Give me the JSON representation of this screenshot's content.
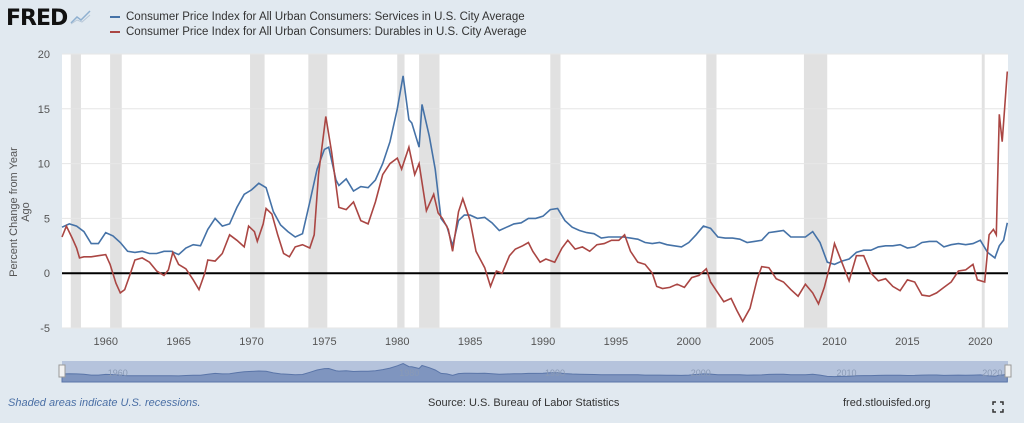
{
  "logo_text": "FRED",
  "chart_data": {
    "type": "line",
    "title": "",
    "ylabel": "Percent Change from Year Ago",
    "xlabel": "",
    "xlim": [
      1957.0,
      2021.9
    ],
    "ylim": [
      -5,
      20
    ],
    "yticks": [
      -5,
      0,
      5,
      10,
      15,
      20
    ],
    "xticks": [
      1960,
      1965,
      1970,
      1975,
      1980,
      1985,
      1990,
      1995,
      2000,
      2005,
      2010,
      2015,
      2020
    ],
    "grid": true,
    "legend_position": "top",
    "recessions": [
      [
        1957.6,
        1958.3
      ],
      [
        1960.3,
        1961.1
      ],
      [
        1969.9,
        1970.9
      ],
      [
        1973.9,
        1975.2
      ],
      [
        1980.0,
        1980.5
      ],
      [
        1981.5,
        1982.9
      ],
      [
        1990.5,
        1991.2
      ],
      [
        2001.2,
        2001.9
      ],
      [
        2007.9,
        2009.5
      ],
      [
        2020.1,
        2020.3
      ]
    ],
    "series": [
      {
        "name": "Consumer Price Index for All Urban Consumers: Services in U.S. City Average",
        "color": "#4572a7",
        "points": [
          [
            1957.0,
            4.2
          ],
          [
            1957.5,
            4.5
          ],
          [
            1958,
            4.3
          ],
          [
            1958.5,
            3.8
          ],
          [
            1959,
            2.7
          ],
          [
            1959.5,
            2.7
          ],
          [
            1960,
            3.7
          ],
          [
            1960.5,
            3.4
          ],
          [
            1961,
            2.8
          ],
          [
            1961.5,
            2.0
          ],
          [
            1962,
            1.9
          ],
          [
            1962.5,
            2.0
          ],
          [
            1963,
            1.8
          ],
          [
            1963.5,
            1.8
          ],
          [
            1964,
            2.0
          ],
          [
            1964.5,
            2.0
          ],
          [
            1965,
            1.7
          ],
          [
            1965.5,
            2.3
          ],
          [
            1966,
            2.6
          ],
          [
            1966.5,
            2.5
          ],
          [
            1967,
            4.0
          ],
          [
            1967.5,
            5.0
          ],
          [
            1968,
            4.3
          ],
          [
            1968.5,
            4.5
          ],
          [
            1969,
            6.0
          ],
          [
            1969.5,
            7.2
          ],
          [
            1970,
            7.6
          ],
          [
            1970.5,
            8.2
          ],
          [
            1971,
            7.8
          ],
          [
            1971.5,
            5.6
          ],
          [
            1972,
            4.4
          ],
          [
            1972.5,
            3.8
          ],
          [
            1973,
            3.3
          ],
          [
            1973.5,
            3.6
          ],
          [
            1974,
            6.5
          ],
          [
            1974.5,
            9.5
          ],
          [
            1975,
            11.3
          ],
          [
            1975.3,
            11.5
          ],
          [
            1975.8,
            8.5
          ],
          [
            1976,
            8.0
          ],
          [
            1976.5,
            8.6
          ],
          [
            1977,
            7.5
          ],
          [
            1977.5,
            7.9
          ],
          [
            1978,
            7.8
          ],
          [
            1978.5,
            8.5
          ],
          [
            1979,
            10.0
          ],
          [
            1979.5,
            12.0
          ],
          [
            1980,
            15.0
          ],
          [
            1980.4,
            18.0
          ],
          [
            1980.8,
            14.0
          ],
          [
            1981,
            13.7
          ],
          [
            1981.5,
            11.5
          ],
          [
            1981.7,
            15.4
          ],
          [
            1982.2,
            12.5
          ],
          [
            1982.6,
            9.5
          ],
          [
            1983,
            5.0
          ],
          [
            1983.4,
            4.3
          ],
          [
            1983.8,
            2.5
          ],
          [
            1984.2,
            4.8
          ],
          [
            1984.6,
            5.3
          ],
          [
            1985,
            5.3
          ],
          [
            1985.5,
            5.0
          ],
          [
            1986,
            5.1
          ],
          [
            1986.5,
            4.6
          ],
          [
            1987,
            3.9
          ],
          [
            1987.5,
            4.2
          ],
          [
            1988,
            4.5
          ],
          [
            1988.5,
            4.6
          ],
          [
            1989,
            5.0
          ],
          [
            1989.5,
            5.0
          ],
          [
            1990,
            5.2
          ],
          [
            1990.5,
            5.8
          ],
          [
            1991,
            5.9
          ],
          [
            1991.5,
            4.8
          ],
          [
            1992,
            4.2
          ],
          [
            1992.5,
            3.9
          ],
          [
            1993,
            3.7
          ],
          [
            1993.5,
            3.6
          ],
          [
            1994,
            3.2
          ],
          [
            1994.5,
            3.3
          ],
          [
            1995,
            3.3
          ],
          [
            1995.5,
            3.3
          ],
          [
            1996,
            3.2
          ],
          [
            1996.5,
            3.1
          ],
          [
            1997,
            2.8
          ],
          [
            1997.5,
            2.7
          ],
          [
            1998,
            2.8
          ],
          [
            1998.5,
            2.6
          ],
          [
            1999,
            2.5
          ],
          [
            1999.5,
            2.4
          ],
          [
            2000,
            2.8
          ],
          [
            2000.5,
            3.5
          ],
          [
            2001,
            4.3
          ],
          [
            2001.5,
            4.1
          ],
          [
            2002,
            3.3
          ],
          [
            2002.5,
            3.2
          ],
          [
            2003,
            3.2
          ],
          [
            2003.5,
            3.1
          ],
          [
            2004,
            2.8
          ],
          [
            2004.5,
            2.9
          ],
          [
            2005,
            3.0
          ],
          [
            2005.5,
            3.7
          ],
          [
            2006,
            3.8
          ],
          [
            2006.5,
            3.9
          ],
          [
            2007,
            3.3
          ],
          [
            2007.5,
            3.3
          ],
          [
            2008,
            3.3
          ],
          [
            2008.5,
            3.8
          ],
          [
            2009,
            2.8
          ],
          [
            2009.5,
            1.0
          ],
          [
            2010,
            0.8
          ],
          [
            2010.5,
            1.1
          ],
          [
            2011,
            1.3
          ],
          [
            2011.5,
            1.9
          ],
          [
            2012,
            2.1
          ],
          [
            2012.5,
            2.1
          ],
          [
            2013,
            2.4
          ],
          [
            2013.5,
            2.5
          ],
          [
            2014,
            2.5
          ],
          [
            2014.5,
            2.6
          ],
          [
            2015,
            2.3
          ],
          [
            2015.5,
            2.4
          ],
          [
            2016,
            2.8
          ],
          [
            2016.5,
            2.9
          ],
          [
            2017,
            2.9
          ],
          [
            2017.5,
            2.4
          ],
          [
            2018,
            2.6
          ],
          [
            2018.5,
            2.7
          ],
          [
            2019,
            2.6
          ],
          [
            2019.5,
            2.7
          ],
          [
            2020,
            3.0
          ],
          [
            2020.5,
            1.9
          ],
          [
            2021,
            1.4
          ],
          [
            2021.3,
            2.5
          ],
          [
            2021.6,
            3.0
          ],
          [
            2021.85,
            4.6
          ]
        ]
      },
      {
        "name": "Consumer Price Index for All Urban Consumers: Durables in U.S. City Average",
        "color": "#aa4643",
        "points": [
          [
            1957.0,
            3.3
          ],
          [
            1957.3,
            4.3
          ],
          [
            1957.7,
            3.2
          ],
          [
            1958.0,
            2.3
          ],
          [
            1958.2,
            1.4
          ],
          [
            1958.5,
            1.5
          ],
          [
            1959,
            1.5
          ],
          [
            1959.5,
            1.6
          ],
          [
            1960,
            1.7
          ],
          [
            1960.3,
            0.8
          ],
          [
            1960.7,
            -0.9
          ],
          [
            1961,
            -1.8
          ],
          [
            1961.3,
            -1.5
          ],
          [
            1961.7,
            0.0
          ],
          [
            1962,
            1.2
          ],
          [
            1962.5,
            1.4
          ],
          [
            1963,
            1.0
          ],
          [
            1963.5,
            0.2
          ],
          [
            1964,
            -0.2
          ],
          [
            1964.3,
            0.3
          ],
          [
            1964.6,
            1.9
          ],
          [
            1965,
            0.8
          ],
          [
            1965.5,
            0.4
          ],
          [
            1966,
            -0.6
          ],
          [
            1966.4,
            -1.5
          ],
          [
            1966.8,
            0.0
          ],
          [
            1967,
            1.2
          ],
          [
            1967.5,
            1.1
          ],
          [
            1968,
            1.8
          ],
          [
            1968.5,
            3.5
          ],
          [
            1969,
            3.0
          ],
          [
            1969.5,
            2.4
          ],
          [
            1969.8,
            4.3
          ],
          [
            1970.2,
            3.8
          ],
          [
            1970.4,
            2.9
          ],
          [
            1970.8,
            4.5
          ],
          [
            1971,
            5.9
          ],
          [
            1971.4,
            5.4
          ],
          [
            1971.8,
            3.5
          ],
          [
            1972.2,
            1.8
          ],
          [
            1972.6,
            1.5
          ],
          [
            1973,
            2.4
          ],
          [
            1973.5,
            2.6
          ],
          [
            1974,
            2.3
          ],
          [
            1974.3,
            3.5
          ],
          [
            1974.6,
            9.0
          ],
          [
            1975.1,
            14.3
          ],
          [
            1975.5,
            11.0
          ],
          [
            1976,
            6.0
          ],
          [
            1976.5,
            5.8
          ],
          [
            1977,
            6.5
          ],
          [
            1977.5,
            4.8
          ],
          [
            1978,
            4.5
          ],
          [
            1978.5,
            6.5
          ],
          [
            1979,
            9.0
          ],
          [
            1979.5,
            10.0
          ],
          [
            1980,
            10.5
          ],
          [
            1980.3,
            9.5
          ],
          [
            1980.8,
            11.5
          ],
          [
            1981.2,
            9.0
          ],
          [
            1981.5,
            10.0
          ],
          [
            1982,
            5.7
          ],
          [
            1982.5,
            7.2
          ],
          [
            1982.8,
            5.5
          ],
          [
            1983.1,
            5.0
          ],
          [
            1983.5,
            4.0
          ],
          [
            1983.8,
            2.0
          ],
          [
            1984.2,
            5.6
          ],
          [
            1984.5,
            6.8
          ],
          [
            1985,
            4.8
          ],
          [
            1985.4,
            2.0
          ],
          [
            1986,
            0.5
          ],
          [
            1986.4,
            -1.2
          ],
          [
            1986.8,
            0.2
          ],
          [
            1987.2,
            0.0
          ],
          [
            1987.7,
            1.6
          ],
          [
            1988.1,
            2.2
          ],
          [
            1988.6,
            2.5
          ],
          [
            1989,
            2.8
          ],
          [
            1989.3,
            2.0
          ],
          [
            1989.8,
            1.0
          ],
          [
            1990.2,
            1.3
          ],
          [
            1990.8,
            1.0
          ],
          [
            1991.3,
            2.3
          ],
          [
            1991.7,
            3.0
          ],
          [
            1992.2,
            2.2
          ],
          [
            1992.7,
            2.4
          ],
          [
            1993.2,
            2.0
          ],
          [
            1993.7,
            2.6
          ],
          [
            1994.2,
            2.7
          ],
          [
            1994.7,
            3.0
          ],
          [
            1995.2,
            3.0
          ],
          [
            1995.6,
            3.5
          ],
          [
            1996,
            2.0
          ],
          [
            1996.5,
            1.0
          ],
          [
            1997,
            0.8
          ],
          [
            1997.5,
            0.0
          ],
          [
            1997.8,
            -1.2
          ],
          [
            1998.2,
            -1.4
          ],
          [
            1998.7,
            -1.3
          ],
          [
            1999.2,
            -1.0
          ],
          [
            1999.7,
            -1.3
          ],
          [
            2000.2,
            -0.4
          ],
          [
            2000.7,
            -0.2
          ],
          [
            2001.2,
            0.4
          ],
          [
            2001.5,
            -0.8
          ],
          [
            2002,
            -1.8
          ],
          [
            2002.4,
            -2.6
          ],
          [
            2002.9,
            -2.3
          ],
          [
            2003.3,
            -3.4
          ],
          [
            2003.7,
            -4.4
          ],
          [
            2004.2,
            -3.2
          ],
          [
            2004.7,
            -0.5
          ],
          [
            2005,
            0.6
          ],
          [
            2005.5,
            0.5
          ],
          [
            2006,
            -0.5
          ],
          [
            2006.5,
            -0.8
          ],
          [
            2007,
            -1.5
          ],
          [
            2007.5,
            -2.1
          ],
          [
            2008,
            -1.0
          ],
          [
            2008.5,
            -1.8
          ],
          [
            2008.9,
            -2.8
          ],
          [
            2009.3,
            -1.3
          ],
          [
            2009.7,
            0.8
          ],
          [
            2010,
            2.7
          ],
          [
            2010.5,
            1.0
          ],
          [
            2011,
            -0.7
          ],
          [
            2011.5,
            1.6
          ],
          [
            2012,
            1.6
          ],
          [
            2012.5,
            0.0
          ],
          [
            2013,
            -0.7
          ],
          [
            2013.5,
            -0.5
          ],
          [
            2014,
            -1.2
          ],
          [
            2014.5,
            -1.6
          ],
          [
            2015,
            -0.6
          ],
          [
            2015.5,
            -0.8
          ],
          [
            2016,
            -2.0
          ],
          [
            2016.5,
            -2.1
          ],
          [
            2017,
            -1.8
          ],
          [
            2017.5,
            -1.3
          ],
          [
            2018,
            -0.8
          ],
          [
            2018.5,
            0.2
          ],
          [
            2019,
            0.3
          ],
          [
            2019.5,
            0.8
          ],
          [
            2019.8,
            -0.6
          ],
          [
            2020.3,
            -0.8
          ],
          [
            2020.6,
            3.5
          ],
          [
            2020.9,
            4.0
          ],
          [
            2021.1,
            3.5
          ],
          [
            2021.3,
            14.5
          ],
          [
            2021.5,
            12.0
          ],
          [
            2021.85,
            18.4
          ]
        ]
      }
    ],
    "navigator_ticks": [
      1960,
      1980,
      1990,
      2000,
      2010,
      2020
    ]
  },
  "footer": {
    "recession_note": "Shaded areas indicate U.S. recessions.",
    "source": "Source: U.S. Bureau of Labor Statistics",
    "site": "fred.stlouisfed.org"
  }
}
